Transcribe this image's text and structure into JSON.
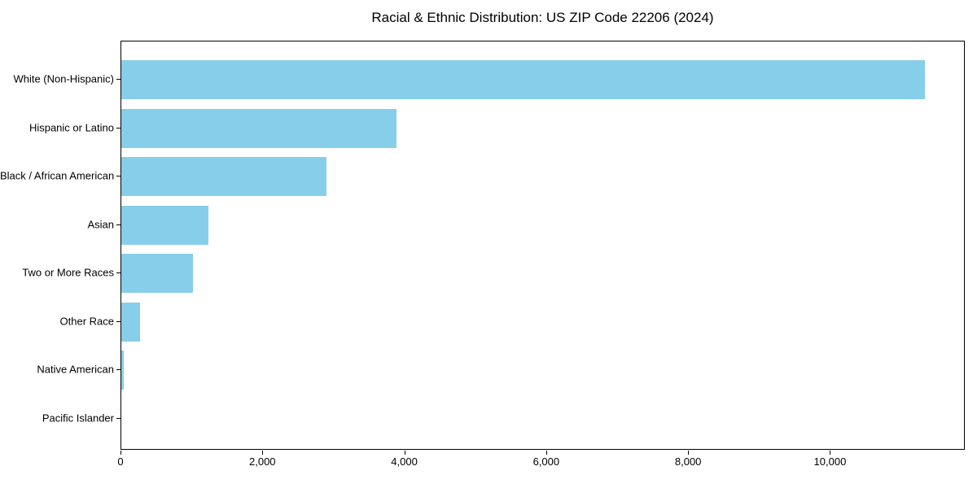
{
  "chart_data": {
    "type": "bar",
    "orientation": "horizontal",
    "title": "Racial & Ethnic Distribution: US ZIP Code 22206 (2024)",
    "categories": [
      "White (Non-Hispanic)",
      "Hispanic or Latino",
      "Black / African American",
      "Asian",
      "Two or More Races",
      "Other Race",
      "Native American",
      "Pacific Islander"
    ],
    "values": [
      11350,
      3890,
      2900,
      1230,
      1010,
      260,
      30,
      0
    ],
    "xlabel": "",
    "ylabel": "",
    "xlim": [
      0,
      11900
    ],
    "xticks": [
      {
        "value": 0,
        "label": "0"
      },
      {
        "value": 2000,
        "label": "2,000"
      },
      {
        "value": 4000,
        "label": "4,000"
      },
      {
        "value": 6000,
        "label": "6,000"
      },
      {
        "value": 8000,
        "label": "8,000"
      },
      {
        "value": 10000,
        "label": "10,000"
      }
    ],
    "grid": false,
    "legend": "none",
    "colors": {
      "bar": "#87CEEB",
      "axis": "#000000",
      "text": "#000000",
      "background": "#FFFFFF"
    }
  }
}
